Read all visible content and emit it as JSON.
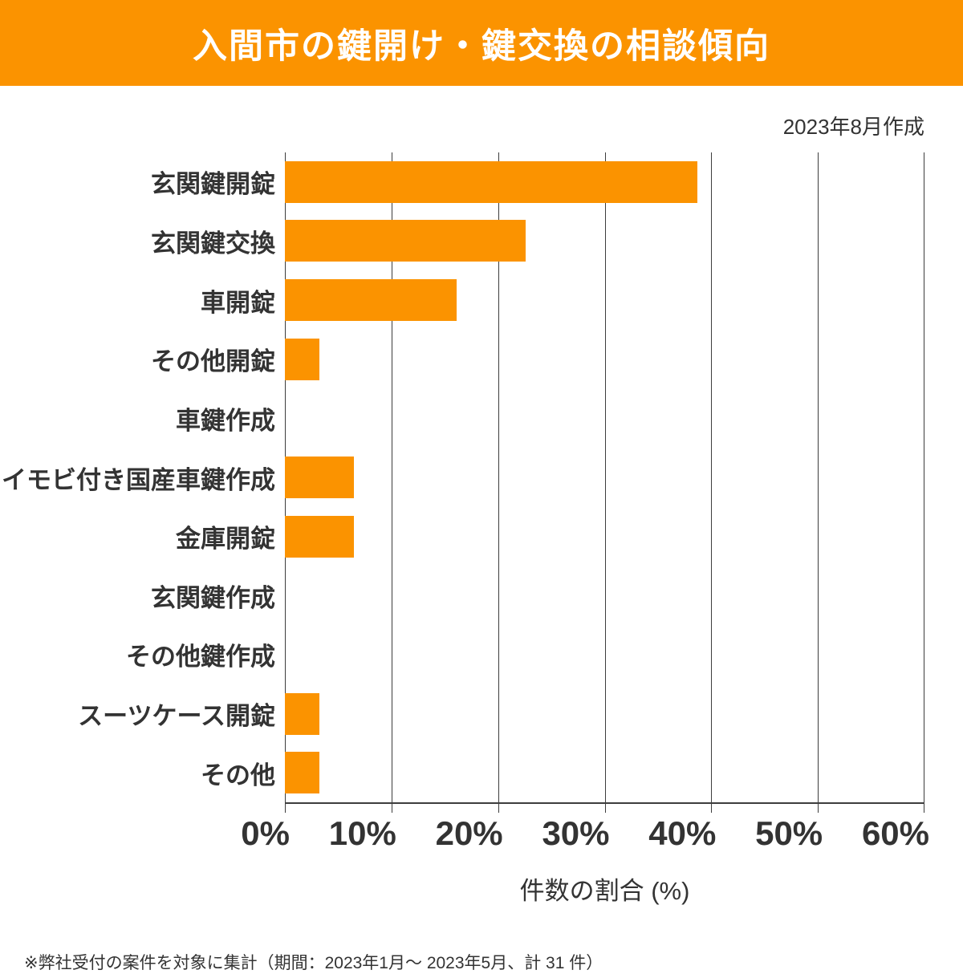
{
  "header": {
    "title": "入間市の鍵開け・鍵交換の相談傾向"
  },
  "meta": {
    "created": "2023年8月作成"
  },
  "chart_data": {
    "type": "bar",
    "orientation": "horizontal",
    "title": "入間市の鍵開け・鍵交換の相談傾向",
    "categories": [
      "玄関鍵開錠",
      "玄関鍵交換",
      "車開錠",
      "その他開錠",
      "車鍵作成",
      "イモビ付き国産車鍵作成",
      "金庫開錠",
      "玄関鍵作成",
      "その他鍵作成",
      "スーツケース開錠",
      "その他"
    ],
    "values": [
      38.7,
      22.6,
      16.1,
      3.2,
      0,
      6.5,
      6.5,
      0,
      0,
      3.2,
      3.2
    ],
    "xlabel": "件数の割合 (%)",
    "ylabel": "",
    "xlim": [
      0,
      60
    ],
    "xtick_labels": [
      "0%",
      "10%",
      "20%",
      "30%",
      "40%",
      "50%",
      "60%"
    ],
    "grid": "vertical",
    "legend_position": "none",
    "bar_color": "#fb9300"
  },
  "colors": {
    "accent_orange": "#fb9300",
    "text_dark": "#333333",
    "title_text": "#ffffff",
    "grid_line": "#3d3d3d"
  },
  "footer": {
    "note": "※弊社受付の案件を対象に集計（期間：2023年1月～ 2023年5月、計 31 件）"
  }
}
